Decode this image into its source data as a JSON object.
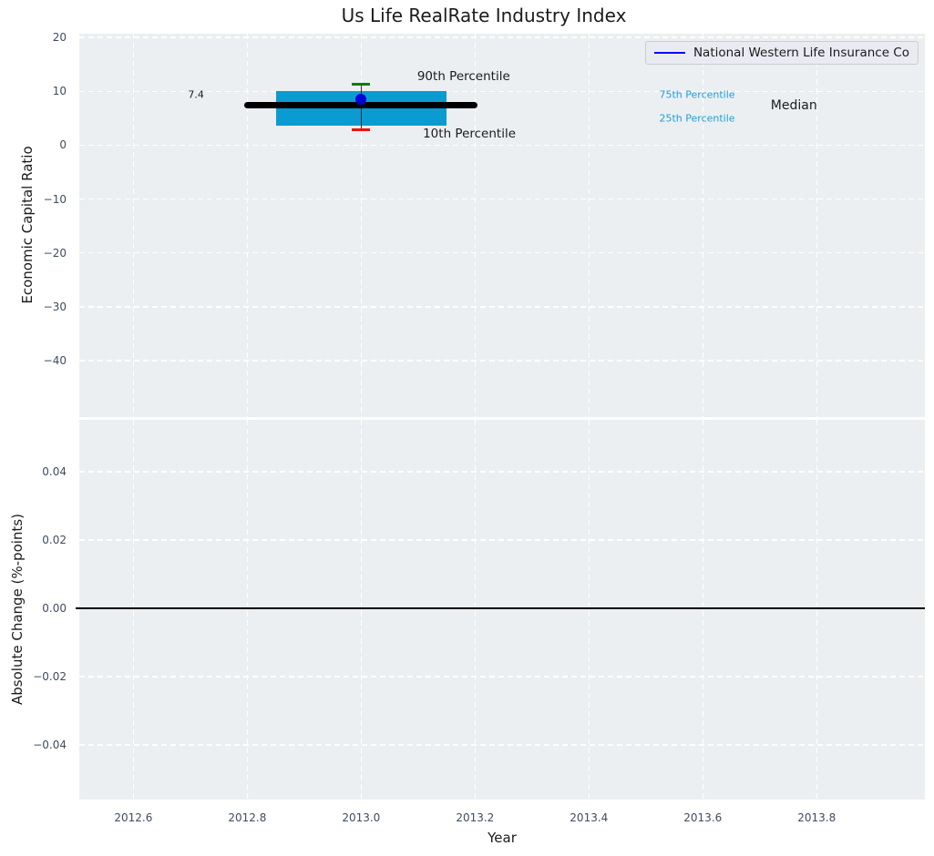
{
  "title": "Us Life RealRate Industry Index",
  "legend": {
    "label": "National Western Life Insurance Co"
  },
  "colors": {
    "page_bg": "#ffffff",
    "axes_bg": "#eceff1",
    "grid": "#ffffff",
    "tick_text": "#3d4d60",
    "text": "#1b1b1b",
    "box_fill": "#0a9bd1",
    "percentile_label": "#1f9fd8",
    "median": "#000000",
    "cap_90": "#068006",
    "cap_10": "#ee1111",
    "dot": "#0000d8",
    "legend_line": "#0000ff",
    "whisker": "#333333",
    "zero_line": "#000000"
  },
  "chart_data": [
    {
      "type": "boxplot",
      "title": "Us Life RealRate Industry Index",
      "ylabel": "Economic Capital Ratio",
      "xlim": [
        2012.505,
        2013.99
      ],
      "ylim": [
        -50.5,
        20.7
      ],
      "xticks": [
        2012.6,
        2012.8,
        2013.0,
        2013.2,
        2013.4,
        2013.6,
        2013.8
      ],
      "yticks": [
        20,
        10,
        0,
        -10,
        -20,
        -30,
        -40
      ],
      "ytick_format": "int",
      "grid": true,
      "legend_position": "upper right",
      "legend_entries": [
        {
          "label": "National Western Life Insurance Co",
          "color": "#0000ff"
        }
      ],
      "box": {
        "center_x": 2013.0,
        "box_left": 2012.85,
        "box_right": 2013.15,
        "median": 7.4,
        "median_left": 2012.8,
        "median_right": 2013.2,
        "p75": 10.1,
        "p25": 3.7,
        "p90": 11.3,
        "p10": 2.9,
        "company_point": {
          "x": 2013.0,
          "y": 8.5
        }
      },
      "annotations": [
        {
          "text": "7.4",
          "x": 2012.71,
          "y": 9.4,
          "color": "#1b1b1b",
          "size": 11
        },
        {
          "text": "90th Percentile",
          "x": 2013.18,
          "y": 12.7,
          "color": "#1b1b1b",
          "size": 13.5
        },
        {
          "text": "10th Percentile",
          "x": 2013.19,
          "y": 2.1,
          "color": "#1b1b1b",
          "size": 13.5
        },
        {
          "text": "75th Percentile",
          "x": 2013.59,
          "y": 9.3,
          "color": "#1f9fd8",
          "size": 11
        },
        {
          "text": "25th Percentile",
          "x": 2013.59,
          "y": 4.9,
          "color": "#1f9fd8",
          "size": 11
        },
        {
          "text": "Median",
          "x": 2013.76,
          "y": 7.4,
          "color": "#1b1b1b",
          "size": 14
        }
      ]
    },
    {
      "type": "line",
      "ylabel": "Absolute Change (%-points)",
      "xlabel": "Year",
      "xlim": [
        2012.505,
        2013.99
      ],
      "ylim": [
        -0.056,
        0.0552
      ],
      "xticks": [
        2012.6,
        2012.8,
        2013.0,
        2013.2,
        2013.4,
        2013.6,
        2013.8
      ],
      "xtick_format": "fixed1",
      "yticks": [
        0.04,
        0.02,
        0,
        -0.02,
        -0.04
      ],
      "ytick_format": "fixed2",
      "grid": true,
      "zero_line": 0.0,
      "series": []
    }
  ]
}
